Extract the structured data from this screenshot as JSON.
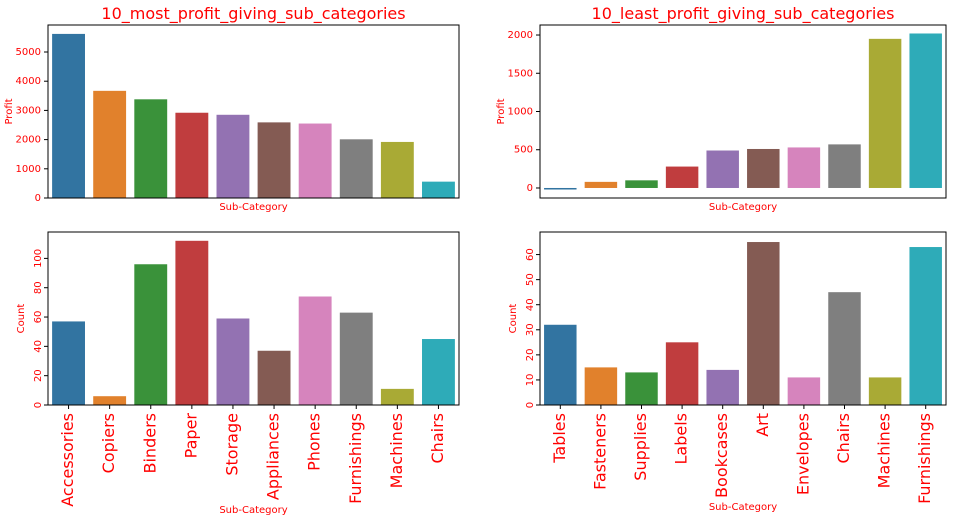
{
  "chart_data": [
    {
      "type": "bar",
      "title": "10_most_profit_giving_sub_categories",
      "xlabel": "Sub-Category",
      "ylabel": "Profit",
      "categories": [
        null,
        null,
        null,
        null,
        null,
        null,
        null,
        null,
        null,
        null
      ],
      "values": [
        5620,
        3670,
        3380,
        2920,
        2850,
        2590,
        2550,
        2010,
        1920,
        560
      ],
      "colors": [
        "#3274a1",
        "#e1812c",
        "#3a923a",
        "#c03d3e",
        "#9372b2",
        "#845b53",
        "#d684bd",
        "#7f7f7f",
        "#a9aa35",
        "#2eabb8"
      ],
      "ylim": [
        0,
        5925
      ],
      "yticks": [
        0,
        1000,
        2000,
        3000,
        4000,
        5000
      ]
    },
    {
      "type": "bar",
      "title": "10_least_profit_giving_sub_categories",
      "xlabel": "Sub-Category",
      "ylabel": "Profit",
      "categories": [
        null,
        null,
        null,
        null,
        null,
        null,
        null,
        null,
        null,
        null
      ],
      "values": [
        -20,
        80,
        100,
        280,
        490,
        510,
        530,
        570,
        1950,
        2020
      ],
      "colors": [
        "#3274a1",
        "#e1812c",
        "#3a923a",
        "#c03d3e",
        "#9372b2",
        "#845b53",
        "#d684bd",
        "#7f7f7f",
        "#a9aa35",
        "#2eabb8"
      ],
      "ylim": [
        -131,
        2131
      ],
      "yticks": [
        0,
        500,
        1000,
        1500,
        2000
      ]
    },
    {
      "type": "bar",
      "xlabel": "Sub-Category",
      "ylabel": "Count",
      "categories": [
        "Accessories",
        "Copiers",
        "Binders",
        "Paper",
        "Storage",
        "Appliances",
        "Phones",
        "Furnishings",
        "Machines",
        "Chairs"
      ],
      "values": [
        57,
        6,
        96,
        112,
        59,
        37,
        74,
        63,
        11,
        45
      ],
      "colors": [
        "#3274a1",
        "#e1812c",
        "#3a923a",
        "#c03d3e",
        "#9372b2",
        "#845b53",
        "#d684bd",
        "#7f7f7f",
        "#a9aa35",
        "#2eabb8"
      ],
      "ylim": [
        0,
        118
      ],
      "yticks": [
        0,
        20,
        40,
        60,
        80,
        100
      ],
      "ytick_rotation": 90,
      "xtick_rotation": 90
    },
    {
      "type": "bar",
      "xlabel": "Sub-Category",
      "ylabel": "Count",
      "categories": [
        "Tables",
        "Fasteners",
        "Supplies",
        "Labels",
        "Bookcases",
        "Art",
        "Envelopes",
        "Chairs",
        "Machines",
        "Furnishings"
      ],
      "values": [
        32,
        15,
        13,
        25,
        14,
        65,
        11,
        45,
        11,
        63
      ],
      "colors": [
        "#3274a1",
        "#e1812c",
        "#3a923a",
        "#c03d3e",
        "#9372b2",
        "#845b53",
        "#d684bd",
        "#7f7f7f",
        "#a9aa35",
        "#2eabb8"
      ],
      "ylim": [
        0,
        69
      ],
      "yticks": [
        0,
        10,
        20,
        30,
        40,
        50,
        60
      ],
      "ytick_rotation": 90,
      "xtick_rotation": 90
    }
  ]
}
